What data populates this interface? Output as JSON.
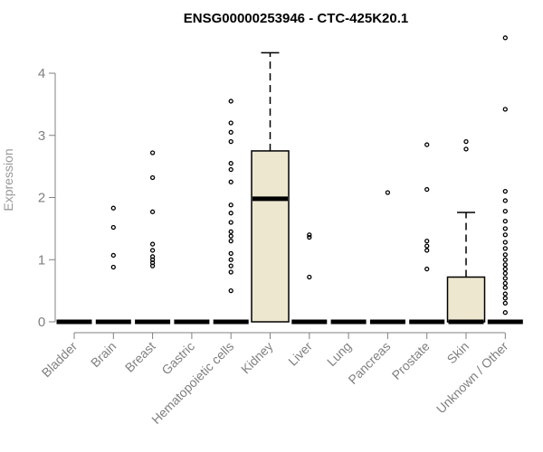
{
  "chart_data": {
    "type": "boxplot",
    "title": "ENSG00000253946 - CTC-425K20.1",
    "xlabel": "",
    "ylabel": "Expression",
    "ylim": [
      0,
      4.6
    ],
    "yticks": [
      0,
      1,
      2,
      3,
      4
    ],
    "box_fill": "#ede7cf",
    "axis_color": "#808080",
    "categories": [
      "Bladder",
      "Brain",
      "Breast",
      "Gastric",
      "Hematopoietic cells",
      "Kidney",
      "Liver",
      "Lung",
      "Pancreas",
      "Prostate",
      "Skin",
      "Unknown / Other"
    ],
    "boxes": [
      {
        "min": 0,
        "q1": 0,
        "median": 0,
        "q3": 0,
        "max": 0,
        "outliers": []
      },
      {
        "min": 0,
        "q1": 0,
        "median": 0,
        "q3": 0,
        "max": 0,
        "outliers": [
          0.88,
          1.07,
          1.52,
          1.83
        ]
      },
      {
        "min": 0,
        "q1": 0,
        "median": 0,
        "q3": 0,
        "max": 0,
        "outliers": [
          0.9,
          0.95,
          1.0,
          1.05,
          1.15,
          1.25,
          1.77,
          2.32,
          2.72
        ]
      },
      {
        "min": 0,
        "q1": 0,
        "median": 0,
        "q3": 0,
        "max": 0,
        "outliers": []
      },
      {
        "min": 0,
        "q1": 0,
        "median": 0,
        "q3": 0,
        "max": 0,
        "outliers": [
          0.5,
          0.8,
          0.9,
          1.0,
          1.1,
          1.3,
          1.38,
          1.45,
          1.6,
          1.75,
          1.88,
          2.25,
          2.45,
          2.55,
          2.9,
          3.05,
          3.2,
          3.55
        ]
      },
      {
        "min": 0,
        "q1": 0,
        "median": 1.98,
        "q3": 2.75,
        "max": 4.33,
        "outliers": []
      },
      {
        "min": 0,
        "q1": 0,
        "median": 0,
        "q3": 0,
        "max": 0,
        "outliers": [
          0.72,
          1.36,
          1.4
        ]
      },
      {
        "min": 0,
        "q1": 0,
        "median": 0,
        "q3": 0,
        "max": 0,
        "outliers": []
      },
      {
        "min": 0,
        "q1": 0,
        "median": 0,
        "q3": 0,
        "max": 0,
        "outliers": [
          2.08
        ]
      },
      {
        "min": 0,
        "q1": 0,
        "median": 0,
        "q3": 0,
        "max": 0,
        "outliers": [
          0.85,
          1.15,
          1.22,
          1.3,
          2.13,
          2.85
        ]
      },
      {
        "min": 0,
        "q1": 0,
        "median": 0,
        "q3": 0.72,
        "max": 1.76,
        "outliers": [
          2.78,
          2.9
        ]
      },
      {
        "min": 0,
        "q1": 0,
        "median": 0,
        "q3": 0,
        "max": 0,
        "outliers": [
          0.15,
          0.3,
          0.38,
          0.45,
          0.55,
          0.62,
          0.7,
          0.78,
          0.85,
          0.92,
          1.0,
          1.08,
          1.18,
          1.28,
          1.4,
          1.5,
          1.62,
          1.78,
          1.95,
          2.1,
          3.42,
          4.57
        ]
      }
    ]
  }
}
